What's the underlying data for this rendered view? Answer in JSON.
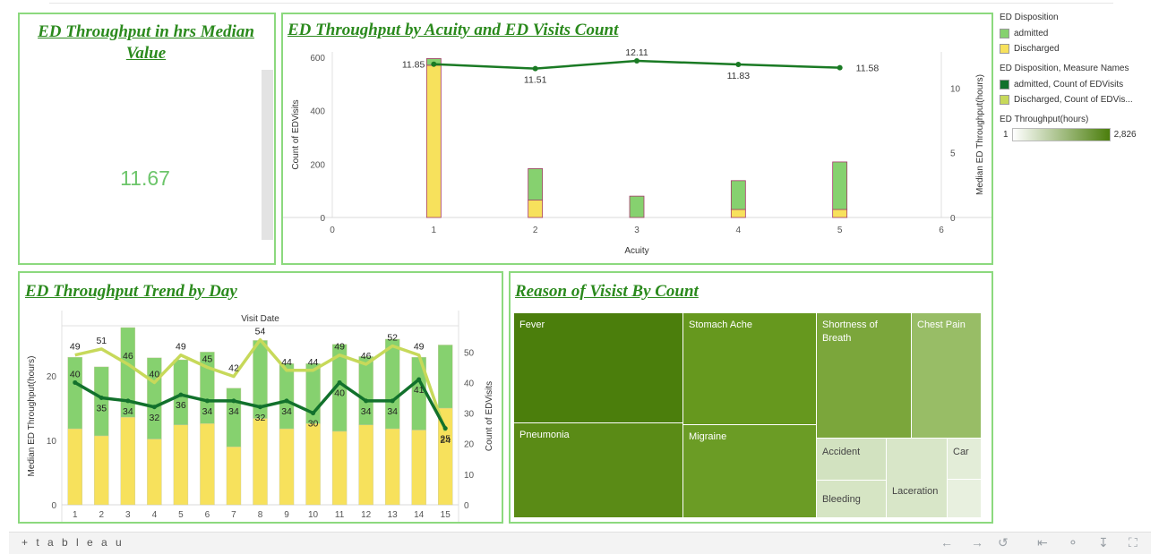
{
  "kpi": {
    "title": "ED Throughput in hrs Median Value",
    "value": "11.67"
  },
  "acuity_chart": {
    "title": "ED Throughput by Acuity and ED Visits Count"
  },
  "trend_chart": {
    "title": "ED Throughput Trend by Day"
  },
  "reason_chart": {
    "title": "Reason of Visist By Count"
  },
  "legend": {
    "disposition_title": "ED Disposition",
    "disposition_items": [
      {
        "label": "admitted",
        "color": "#86d16f"
      },
      {
        "label": "Discharged",
        "color": "#f7e15c"
      }
    ],
    "measure_title": "ED Disposition, Measure Names",
    "measure_items": [
      {
        "label": "admitted, Count of EDVisits",
        "color": "#12712c"
      },
      {
        "label": "Discharged, Count of EDVis...",
        "color": "#c7d95a"
      }
    ],
    "throughput_title": "ED Throughput(hours)",
    "throughput_min": "1",
    "throughput_max": "2,826"
  },
  "footer": {
    "logo": "+ t a b l e a u",
    "icons": [
      "back-arrow-icon",
      "forward-arrow-icon",
      "revert-icon",
      "first-page-icon",
      "share-icon",
      "download-icon",
      "fullscreen-icon"
    ]
  },
  "chart_data": [
    {
      "type": "bar",
      "chart": "acuity",
      "title": "ED Throughput by Acuity and ED Visits Count",
      "xlabel": "Acuity",
      "ylabel": "Count of EDVisits",
      "y2label": "Median ED Throughput(hours)",
      "x_ticks": [
        "0",
        "1",
        "2",
        "3",
        "4",
        "5",
        "6"
      ],
      "y_ticks": [
        "0",
        "200",
        "400",
        "600"
      ],
      "y2_ticks": [
        "0",
        "5",
        "10"
      ],
      "xlim": [
        0,
        6
      ],
      "ylim": [
        0,
        620
      ],
      "y2lim": [
        0,
        12.8
      ],
      "categories": [
        1,
        2,
        3,
        4,
        5
      ],
      "stacked": true,
      "series": [
        {
          "name": "Discharged",
          "color": "#f7e15c",
          "values": [
            570,
            65,
            0,
            30,
            30
          ]
        },
        {
          "name": "admitted",
          "color": "#86d16f",
          "values": [
            25,
            118,
            80,
            108,
            178
          ]
        }
      ],
      "line": {
        "name": "Median ED Throughput(hours)",
        "color": "#1a7a24",
        "values": [
          11.85,
          11.51,
          12.11,
          11.83,
          11.58
        ],
        "labels": [
          "11.85",
          "11.51",
          "12.11",
          "11.83",
          "11.58"
        ]
      }
    },
    {
      "type": "bar",
      "chart": "trend",
      "title": "ED Throughput Trend by Day",
      "xheader": "Visit Date",
      "ylabel": "Median ED Throughput(hours)",
      "y2label": "Count of EDVisits",
      "categories": [
        "1",
        "2",
        "3",
        "4",
        "5",
        "6",
        "7",
        "8",
        "9",
        "10",
        "11",
        "12",
        "13",
        "14",
        "15"
      ],
      "y_ticks": [
        "0",
        "10",
        "20"
      ],
      "y2_ticks": [
        "0",
        "10",
        "20",
        "30",
        "40",
        "50"
      ],
      "ylim": [
        0,
        27.5
      ],
      "y2lim": [
        0,
        58
      ],
      "stacked": true,
      "series": [
        {
          "name": "Discharged",
          "color": "#f7e15c",
          "values": [
            11.8,
            10.7,
            13.6,
            10.2,
            12.4,
            12.6,
            9.0,
            13.4,
            11.8,
            12.6,
            11.4,
            12.4,
            11.8,
            11.6,
            15.0
          ]
        },
        {
          "name": "admitted",
          "color": "#86d16f",
          "values": [
            11.1,
            10.7,
            13.9,
            12.6,
            10.1,
            11.1,
            9.1,
            12.1,
            10.1,
            9.3,
            13.5,
            10.6,
            13.9,
            11.3,
            9.8
          ]
        }
      ],
      "lines": [
        {
          "name": "Discharged, Count of EDVisits",
          "color": "#c7d95a",
          "values": [
            49,
            51,
            46,
            40,
            49,
            45,
            42,
            54,
            44,
            44,
            49,
            46,
            52,
            49,
            24
          ]
        },
        {
          "name": "admitted, Count of EDVisits",
          "color": "#12712c",
          "values": [
            40,
            35,
            34,
            32,
            36,
            34,
            34,
            32,
            34,
            30,
            40,
            34,
            34,
            41,
            25
          ]
        }
      ]
    },
    {
      "type": "treemap",
      "chart": "reason",
      "title": "Reason of Visist By Count",
      "items": [
        {
          "label": "Fever",
          "color": "#4b7e0c"
        },
        {
          "label": "Pneumonia",
          "color": "#5a8b16"
        },
        {
          "label": "Stomach Ache",
          "color": "#66981e"
        },
        {
          "label": "Migraine",
          "color": "#6b9c25"
        },
        {
          "label": "Shortness of Breath",
          "color": "#7ba63b"
        },
        {
          "label": "Chest Pain",
          "color": "#98bd66"
        },
        {
          "label": "Accident",
          "color": "#d2e2c0"
        },
        {
          "label": "Bleeding",
          "color": "#d6e5c4"
        },
        {
          "label": "Laceration",
          "color": "#d8e6c8"
        },
        {
          "label": "Car",
          "color": "#e3edd8"
        },
        {
          "label": "",
          "color": "#e8f0df"
        }
      ]
    }
  ]
}
